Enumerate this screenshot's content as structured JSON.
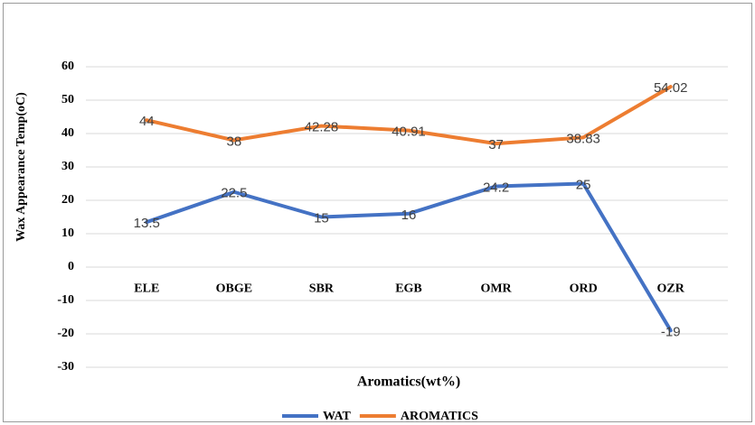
{
  "chart_data": {
    "type": "line",
    "x_label": "Aromatics(wt%)",
    "y_label": "Wax Appearance Temp(oC)",
    "categories": [
      "ELE",
      "OBGE",
      "SBR",
      "EGB",
      "OMR",
      "ORD",
      "OZR"
    ],
    "series": [
      {
        "name": "WAT",
        "color": "#4472c4",
        "values": [
          13.5,
          22.5,
          15,
          16,
          24.2,
          25,
          -19
        ]
      },
      {
        "name": "AROMATICS",
        "color": "#ed7d31",
        "values": [
          44,
          38,
          42.28,
          40.91,
          37,
          38.83,
          54.02
        ]
      }
    ],
    "ylim": [
      -30,
      60
    ],
    "yticks": [
      -30,
      -20,
      -10,
      0,
      10,
      20,
      30,
      40,
      50,
      60
    ],
    "grid": true
  }
}
